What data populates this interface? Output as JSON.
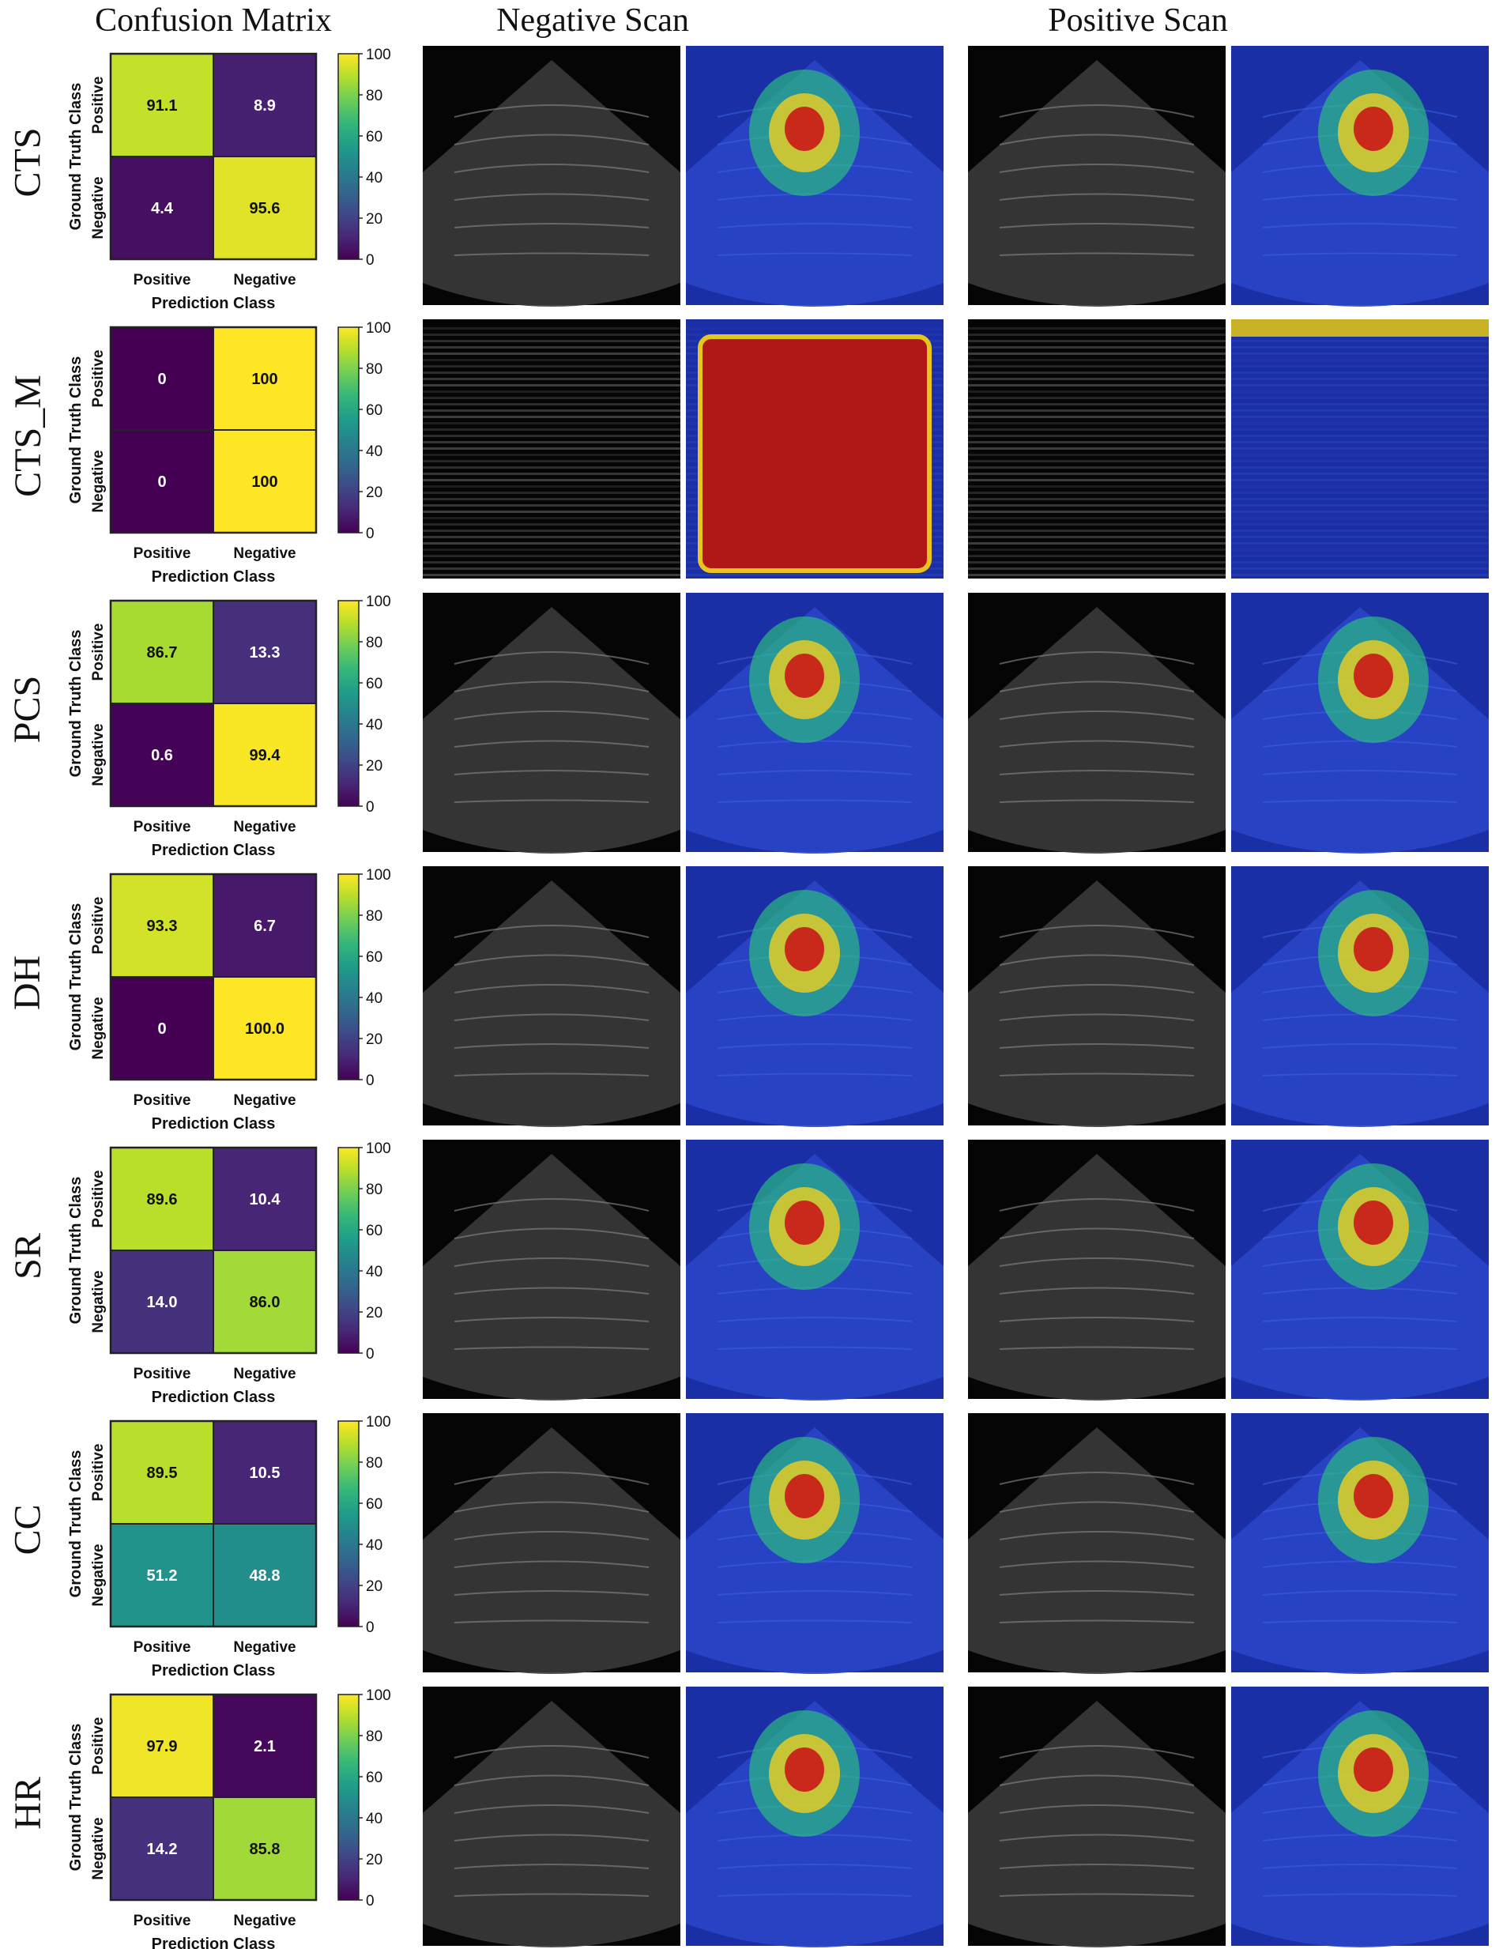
{
  "headers": {
    "confusion": "Confusion Matrix",
    "negative": "Negative Scan",
    "positive": "Positive Scan"
  },
  "axis": {
    "xlabel": "Prediction Class",
    "ylabel": "Ground Truth Class",
    "classes": [
      "Positive",
      "Negative"
    ]
  },
  "colorbar_ticks": [
    "0",
    "20",
    "40",
    "60",
    "80",
    "100"
  ],
  "colors": {
    "viridis": [
      "#440154",
      "#482878",
      "#3e4989",
      "#31688e",
      "#26828e",
      "#1f9e89",
      "#35b779",
      "#6ece58",
      "#b5de2b",
      "#fde725"
    ],
    "ultrasound_bg": "#050505",
    "overlay_bg": "#1a2fa6"
  },
  "chart_data": [
    {
      "type": "heatmap",
      "row_label": "CTS",
      "cells": [
        [
          91.1,
          8.9
        ],
        [
          4.4,
          95.6
        ]
      ],
      "cell_labels": [
        [
          "91.1",
          "8.9"
        ],
        [
          "4.4",
          "95.6"
        ]
      ],
      "zlim": [
        0,
        100
      ]
    },
    {
      "type": "heatmap",
      "row_label": "CTS_M",
      "cells": [
        [
          0,
          100
        ],
        [
          0,
          100
        ]
      ],
      "cell_labels": [
        [
          "0",
          "100"
        ],
        [
          "0",
          "100"
        ]
      ],
      "zlim": [
        0,
        100
      ]
    },
    {
      "type": "heatmap",
      "row_label": "PCS",
      "cells": [
        [
          86.7,
          13.3
        ],
        [
          0.6,
          99.4
        ]
      ],
      "cell_labels": [
        [
          "86.7",
          "13.3"
        ],
        [
          "0.6",
          "99.4"
        ]
      ],
      "zlim": [
        0,
        100
      ]
    },
    {
      "type": "heatmap",
      "row_label": "DH",
      "cells": [
        [
          93.3,
          6.7
        ],
        [
          0,
          100.0
        ]
      ],
      "cell_labels": [
        [
          "93.3",
          "6.7"
        ],
        [
          "0",
          "100.0"
        ]
      ],
      "zlim": [
        0,
        100
      ]
    },
    {
      "type": "heatmap",
      "row_label": "SR",
      "cells": [
        [
          89.6,
          10.4
        ],
        [
          14.0,
          86.0
        ]
      ],
      "cell_labels": [
        [
          "89.6",
          "10.4"
        ],
        [
          "14.0",
          "86.0"
        ]
      ],
      "zlim": [
        0,
        100
      ]
    },
    {
      "type": "heatmap",
      "row_label": "CC",
      "cells": [
        [
          89.5,
          10.5
        ],
        [
          51.2,
          48.8
        ]
      ],
      "cell_labels": [
        [
          "89.5",
          "10.5"
        ],
        [
          "51.2",
          "48.8"
        ]
      ],
      "zlim": [
        0,
        100
      ]
    },
    {
      "type": "heatmap",
      "row_label": "HR",
      "cells": [
        [
          97.9,
          2.1
        ],
        [
          14.2,
          85.8
        ]
      ],
      "cell_labels": [
        [
          "97.9",
          "2.1"
        ],
        [
          "14.2",
          "85.8"
        ]
      ],
      "zlim": [
        0,
        100
      ]
    }
  ]
}
